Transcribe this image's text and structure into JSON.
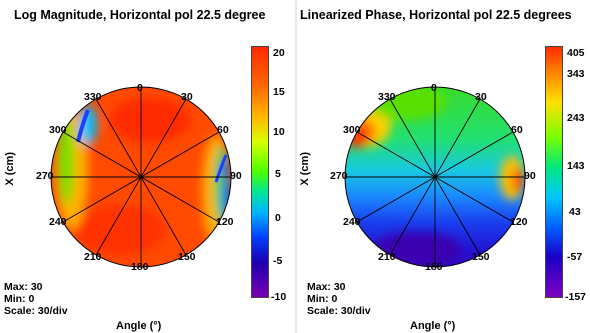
{
  "left_panel": {
    "title": "Log Magnitude, Horizontal pol 22.5 degree",
    "y_axis_label": "X (cm)",
    "x_axis_label": "Angle (°)",
    "max_label": "Max: 30",
    "min_label": "Min: 0",
    "scale_label": "Scale: 30/div",
    "angle_labels": [
      "0",
      "30",
      "60",
      "90",
      "120",
      "150",
      "180",
      "210",
      "240",
      "270",
      "300",
      "330"
    ],
    "colorbar_ticks": [
      "20",
      "15",
      "10",
      "5",
      "0",
      "-5",
      "-10"
    ]
  },
  "right_panel": {
    "title": "Linearized Phase, Horizontal pol 22.5 degrees",
    "y_axis_label": "X (cm)",
    "x_axis_label": "Angle (°)",
    "max_label": "Max: 30",
    "min_label": "Min: 0",
    "scale_label": "Scale: 30/div",
    "angle_labels": [
      "0",
      "30",
      "60",
      "90",
      "120",
      "150",
      "180",
      "210",
      "240",
      "270",
      "300",
      "330"
    ],
    "colorbar_ticks": [
      "405",
      "343",
      "243",
      "143",
      "43",
      "-57",
      "-157"
    ]
  },
  "colors": {
    "magnitude_fill": "#ff4a00",
    "phase_top": "#2ddc2d",
    "phase_bottom": "#3000c8"
  }
}
